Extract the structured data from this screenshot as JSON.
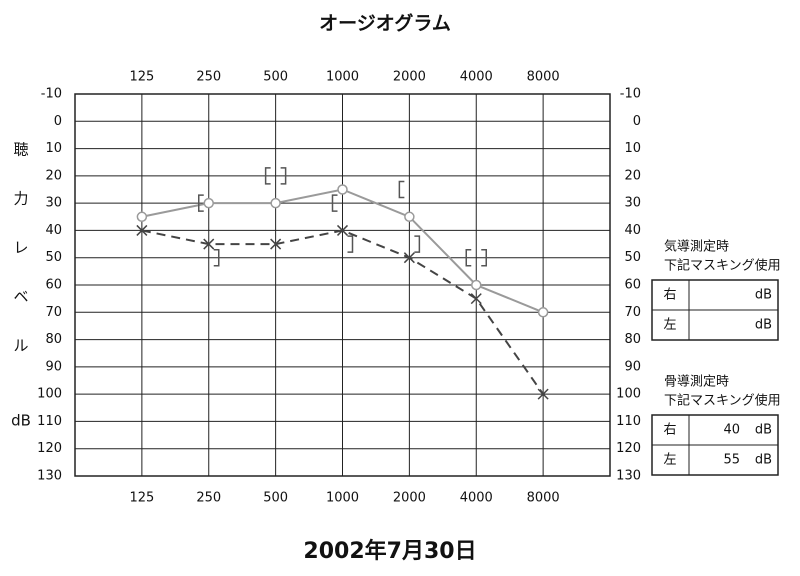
{
  "chart_data": {
    "type": "audiogram",
    "title": "オージオグラム",
    "categories": [
      "125",
      "250",
      "500",
      "1000",
      "2000",
      "4000",
      "8000"
    ],
    "ylim": [
      -10,
      130
    ],
    "yticks": [
      -10,
      0,
      10,
      20,
      30,
      40,
      50,
      60,
      70,
      80,
      90,
      100,
      110,
      120,
      130
    ],
    "y_inverted": true,
    "grid": true,
    "y_label": [
      "聴",
      "力",
      "レ",
      "ベ",
      "ル"
    ],
    "y_unit": "dB",
    "series": [
      {
        "color": "#9a9a9a",
        "marker": "circle",
        "dash": false,
        "values": [
          35,
          30,
          30,
          25,
          35,
          60,
          70
        ]
      },
      {
        "color": "#444444",
        "marker": "x",
        "dash": true,
        "values": [
          40,
          45,
          45,
          40,
          50,
          65,
          100
        ]
      },
      {
        "color": "#555555",
        "marker": "bracket-open",
        "values": [
          null,
          30,
          20,
          30,
          25,
          50,
          null
        ]
      },
      {
        "color": "#555555",
        "marker": "bracket-close",
        "values": [
          null,
          50,
          20,
          45,
          45,
          50,
          null
        ]
      }
    ],
    "date": "2002年7月30日"
  },
  "masking_tables": [
    {
      "heading": [
        "気導測定時",
        "下記マスキング使用"
      ],
      "rows": [
        {
          "ear": "右",
          "unit": "dB"
        },
        {
          "ear": "左",
          "unit": "dB"
        }
      ]
    },
    {
      "heading": [
        "骨導測定時",
        "下記マスキング使用"
      ],
      "rows": [
        {
          "ear": "右",
          "value": 40,
          "unit": "dB"
        },
        {
          "ear": "左",
          "value": 55,
          "unit": "dB"
        }
      ]
    }
  ]
}
